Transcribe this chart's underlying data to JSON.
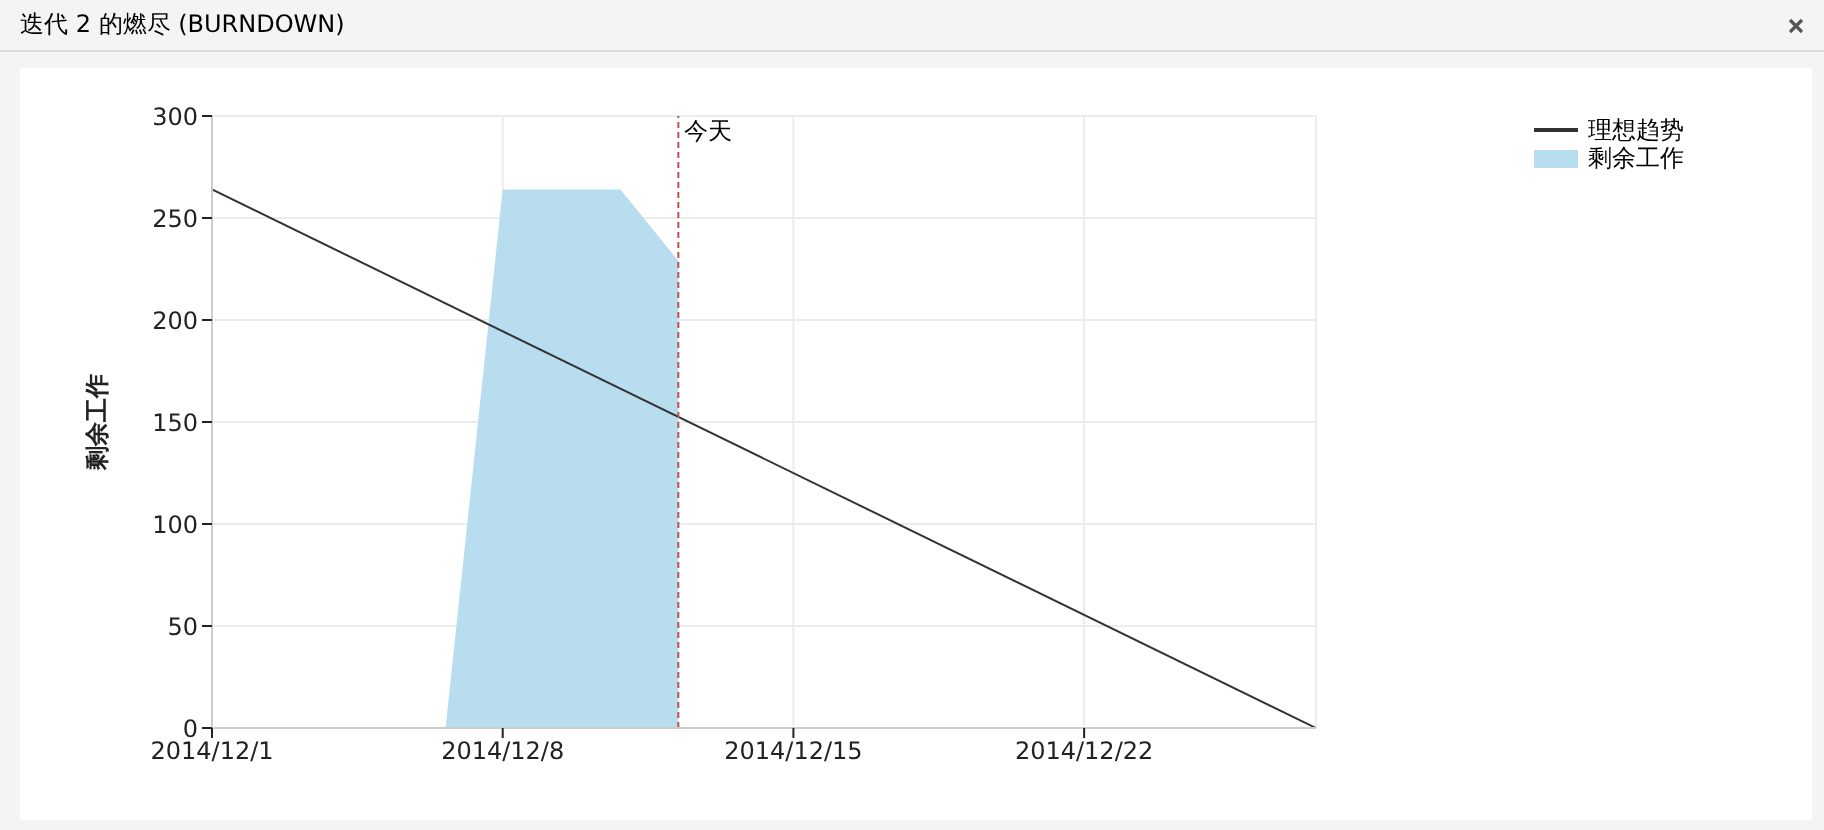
{
  "chart_data": {
    "type": "line",
    "title": "迭代 2 的燃尽 (BURNDOWN)",
    "ylabel": "剩余工作",
    "xlim": [
      "2014-12-01",
      "2014-12-27T14:00"
    ],
    "xticks": [
      {
        "value": "2014-12-01",
        "label": "2014/12/1"
      },
      {
        "value": "2014-12-08",
        "label": "2014/12/8"
      },
      {
        "value": "2014-12-15",
        "label": "2014/12/15"
      },
      {
        "value": "2014-12-22",
        "label": "2014/12/22"
      }
    ],
    "ylim": [
      0,
      300
    ],
    "yticks": [
      0,
      50,
      100,
      150,
      200,
      250,
      300
    ],
    "series": [
      {
        "name": "理想趋势",
        "color": "#333333",
        "x": [
          "2014-12-01",
          "2014-12-27T14:00"
        ],
        "values": [
          264,
          0
        ]
      },
      {
        "name": "剩余工作",
        "type": "area",
        "color": "#b8ddee",
        "x": [
          "2014-12-06T15:00",
          "2014-12-08",
          "2014-12-10T20:00",
          "2014-12-12T05:30"
        ],
        "values": [
          0,
          264,
          264,
          229
        ]
      }
    ],
    "ref_lines": [
      {
        "axis": "x",
        "value": "2014-12-12T05:30",
        "label": "今天",
        "color": "#c0504d",
        "line_style": "dashed"
      }
    ],
    "grid": true,
    "legend": "top right",
    "marker": "none"
  }
}
